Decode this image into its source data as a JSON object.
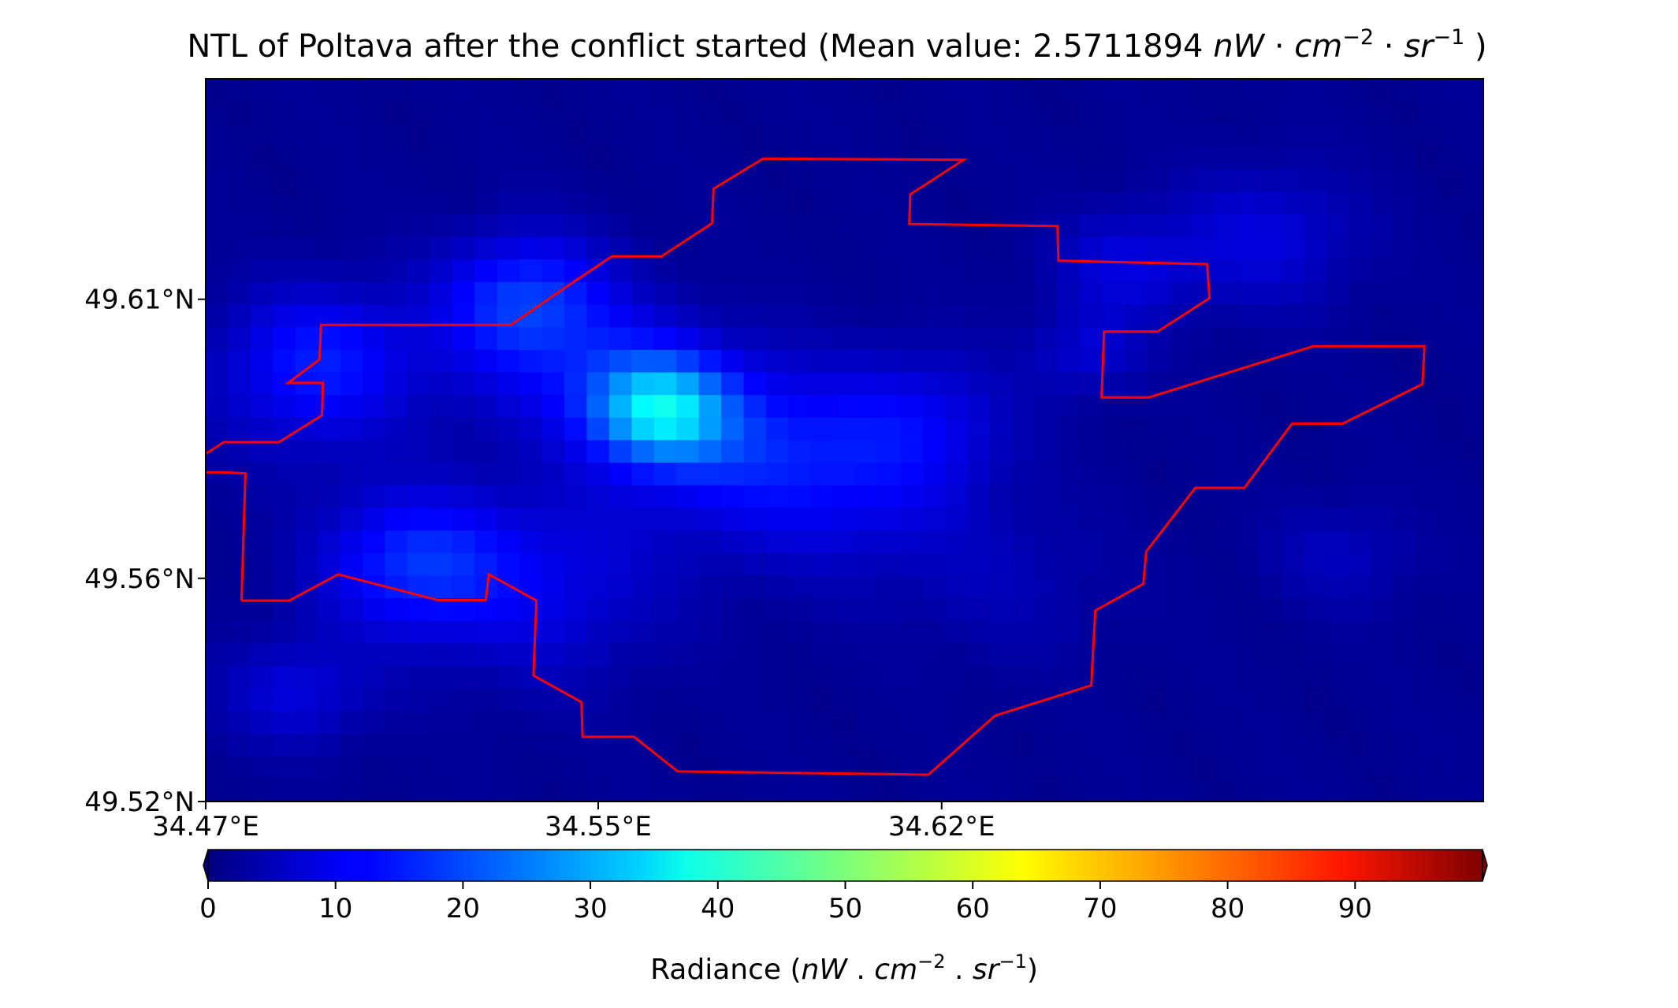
{
  "chart_data": {
    "type": "heatmap",
    "title": "NTL of Poltava after the conflict started (Mean value: 2.5711894 nW · cm⁻² · sr⁻¹ )",
    "title_parts": {
      "prefix": "NTL of Poltava after the conflict started (Mean value: 2.5711894 ",
      "unit_nW": "nW",
      "dot1": " · ",
      "unit_cm": "cm",
      "exp_cm": "−2",
      "dot2": " · ",
      "unit_sr": "sr",
      "exp_sr": "−1",
      "suffix": " )"
    },
    "x_ticks": [
      "34.47°E",
      "34.55°E",
      "34.62°E"
    ],
    "x_tick_values": [
      34.47,
      34.55,
      34.62
    ],
    "y_ticks": [
      "49.61°N",
      "49.56°N",
      "49.52°N"
    ],
    "y_tick_values": [
      49.61,
      49.56,
      49.52
    ],
    "xlim": [
      34.47,
      34.7304
    ],
    "ylim": [
      49.52,
      49.6495
    ],
    "colormap": "jet",
    "colorbar": {
      "range": [
        0,
        100
      ],
      "ticks": [
        0,
        10,
        20,
        30,
        40,
        50,
        60,
        70,
        80,
        90
      ],
      "extend": "both",
      "label_parts": {
        "prefix": "Radiance (",
        "unit_nW": "nW",
        "dot1": " . ",
        "unit_cm": "cm",
        "exp_cm": "−2",
        "dot2": " . ",
        "unit_sr": "sr",
        "exp_sr": "−1",
        "suffix": ")"
      }
    },
    "boundary_color": "#ff0000",
    "boundary": [
      [
        34.4773,
        49.556
      ],
      [
        34.487,
        49.556
      ],
      [
        34.497,
        49.5607
      ],
      [
        34.5173,
        49.5561
      ],
      [
        34.5271,
        49.5561
      ],
      [
        34.5277,
        49.5607
      ],
      [
        34.5374,
        49.556
      ],
      [
        34.5368,
        49.5426
      ],
      [
        34.5466,
        49.5378
      ],
      [
        34.5468,
        49.5316
      ],
      [
        34.5573,
        49.5316
      ],
      [
        34.5662,
        49.5254
      ],
      [
        34.6173,
        49.5248
      ],
      [
        34.6309,
        49.5354
      ],
      [
        34.6505,
        49.5408
      ],
      [
        34.6513,
        49.5542
      ],
      [
        34.6611,
        49.559
      ],
      [
        34.6617,
        49.5648
      ],
      [
        34.6717,
        49.5762
      ],
      [
        34.6817,
        49.5762
      ],
      [
        34.6914,
        49.5877
      ],
      [
        34.7017,
        49.5877
      ],
      [
        34.718,
        49.5948
      ],
      [
        34.7184,
        49.6016
      ],
      [
        34.6958,
        49.6016
      ],
      [
        34.6622,
        49.5924
      ],
      [
        34.6526,
        49.5924
      ],
      [
        34.6531,
        49.6042
      ],
      [
        34.664,
        49.6042
      ],
      [
        34.6746,
        49.6102
      ],
      [
        34.6741,
        49.6163
      ],
      [
        34.6438,
        49.6169
      ],
      [
        34.6436,
        49.6231
      ],
      [
        34.6134,
        49.6235
      ],
      [
        34.6136,
        49.6288
      ],
      [
        34.6245,
        49.635
      ],
      [
        34.5836,
        49.6352
      ],
      [
        34.5735,
        49.6298
      ],
      [
        34.5732,
        49.6236
      ],
      [
        34.5629,
        49.6177
      ],
      [
        34.5528,
        49.6177
      ],
      [
        34.5428,
        49.6118
      ],
      [
        34.5322,
        49.6054
      ],
      [
        34.5124,
        49.6054
      ],
      [
        34.4935,
        49.6054
      ],
      [
        34.4932,
        49.5992
      ],
      [
        34.4868,
        49.595
      ],
      [
        34.4939,
        49.595
      ],
      [
        34.4937,
        49.5892
      ],
      [
        34.4849,
        49.5844
      ],
      [
        34.4737,
        49.5844
      ],
      [
        34.4642,
        49.579
      ],
      [
        34.4733,
        49.579
      ],
      [
        34.4781,
        49.5788
      ],
      [
        34.4773,
        49.556
      ]
    ],
    "grid": "off",
    "legend": "none"
  }
}
